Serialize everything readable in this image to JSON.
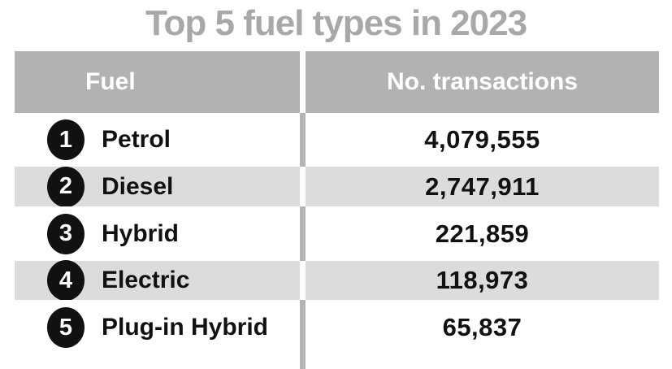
{
  "title": "Top 5 fuel types in 2023",
  "colors": {
    "title": "#a8a8a8",
    "header_bg": "#b2b2b2",
    "header_text": "#ffffff",
    "row_alt_bg": "#dcdcdc",
    "divider": "#b4b4b4",
    "text": "#111111",
    "badge_bg": "#111111",
    "badge_text": "#ffffff"
  },
  "table": {
    "headers": {
      "fuel": "Fuel",
      "transactions": "No. transactions"
    },
    "rows": [
      {
        "rank": "1",
        "fuel": "Petrol",
        "transactions": "4,079,555"
      },
      {
        "rank": "2",
        "fuel": "Diesel",
        "transactions": "2,747,911"
      },
      {
        "rank": "3",
        "fuel": "Hybrid",
        "transactions": "221,859"
      },
      {
        "rank": "4",
        "fuel": "Electric",
        "transactions": "118,973"
      },
      {
        "rank": "5",
        "fuel": "Plug-in Hybrid",
        "transactions": "65,837"
      }
    ]
  },
  "chart_data": {
    "type": "table",
    "title": "Top 5 fuel types in 2023",
    "columns": [
      "Fuel",
      "No. transactions"
    ],
    "rows": [
      [
        "Petrol",
        4079555
      ],
      [
        "Diesel",
        2747911
      ],
      [
        "Hybrid",
        221859
      ],
      [
        "Electric",
        118973
      ],
      [
        "Plug-in Hybrid",
        65837
      ]
    ],
    "layout_hints": {
      "header_style": "gray band, white bold text",
      "row_striping": "white / light gray alternating",
      "rank_badges": "black circles with white numbers"
    }
  }
}
